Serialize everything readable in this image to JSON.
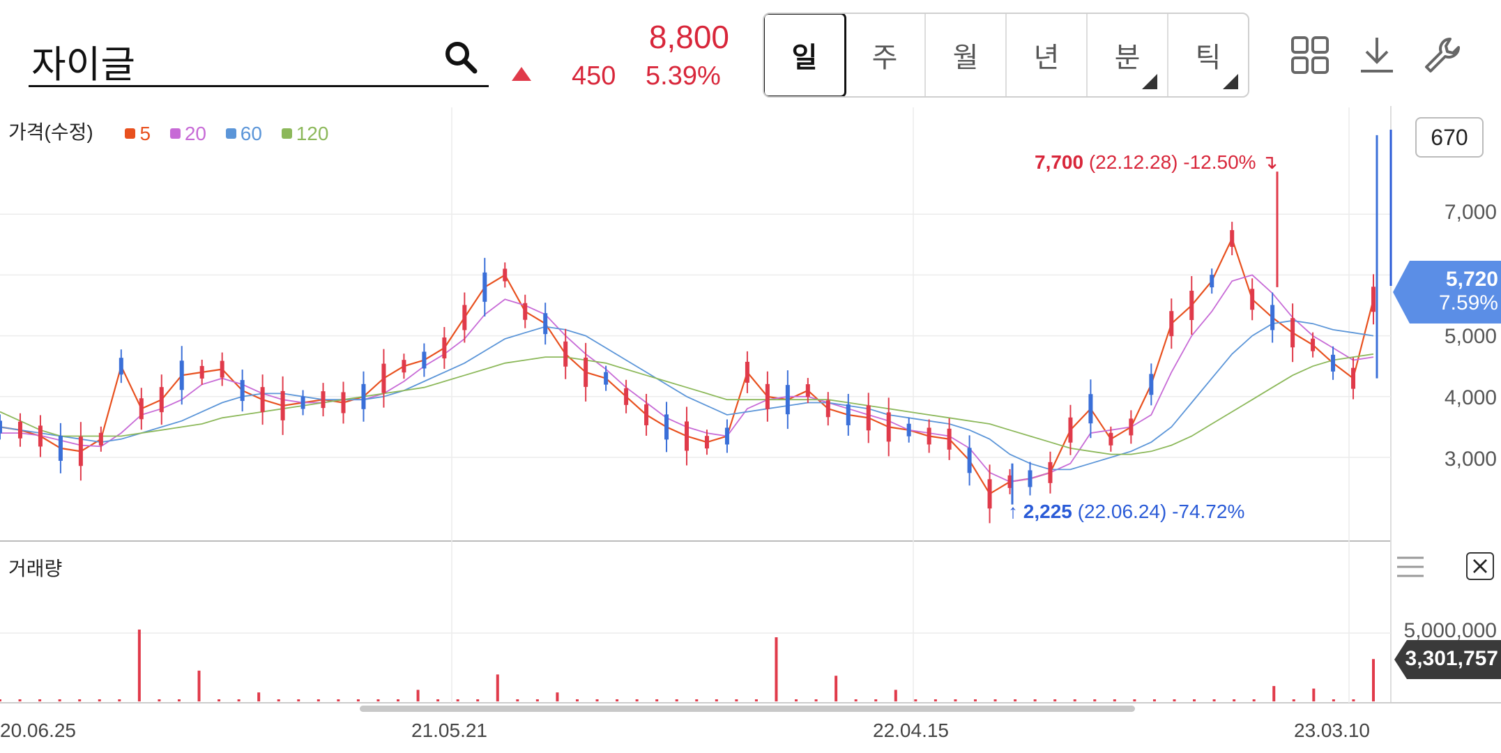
{
  "header": {
    "search_value": "자이글",
    "price": "8,800",
    "change": "450",
    "change_rate": "5.39%",
    "up_color": "#d8263a"
  },
  "periods": [
    {
      "label": "일",
      "active": true
    },
    {
      "label": "주"
    },
    {
      "label": "월"
    },
    {
      "label": "년"
    },
    {
      "label": "분",
      "has_submenu": true
    },
    {
      "label": "틱",
      "has_submenu": true
    }
  ],
  "tools": [
    "grid-layout-icon",
    "download-icon",
    "wrench-icon"
  ],
  "price_panel": {
    "title": "가격(수정)",
    "legend": [
      {
        "label": "5",
        "color": "#e8501e"
      },
      {
        "label": "20",
        "color": "#c76ad6"
      },
      {
        "label": "60",
        "color": "#5b95d8"
      },
      {
        "label": "120",
        "color": "#8cb85a"
      }
    ],
    "scale_box": "670",
    "y_ticks": [
      "7,000",
      "5,000",
      "4,000",
      "3,000"
    ],
    "current_tag": {
      "value": "5,720",
      "rate": "7.59%"
    },
    "high_annotation": {
      "value": "7,700",
      "date": "(22.12.28)",
      "rate": "-12.50%"
    },
    "low_annotation": {
      "value": "2,225",
      "date": "(22.06.24)",
      "rate": "-74.72%"
    }
  },
  "volume_panel": {
    "title": "거래량",
    "y_tick": "5,000,000",
    "current_tag": "3,301,757"
  },
  "x_labels": [
    "20.06.25",
    "21.05.21",
    "22.04.15",
    "23.03.10"
  ],
  "chart_data": {
    "type": "line",
    "y_axis_ticks": [
      3000,
      4000,
      5000,
      7000
    ],
    "high": {
      "value": 7700,
      "date": "22.12.28"
    },
    "low": {
      "value": 2225,
      "date": "22.06.24"
    },
    "current": 5720,
    "series": [
      {
        "name": "5",
        "values": [
          3500,
          3450,
          3350,
          3150,
          3100,
          3300,
          4500,
          3800,
          3950,
          4350,
          4400,
          4450,
          4100,
          3950,
          3850,
          3900,
          3950,
          3900,
          4000,
          4300,
          4500,
          4600,
          4800,
          5300,
          5800,
          6000,
          5400,
          5200,
          4700,
          4400,
          4300,
          4000,
          3700,
          3500,
          3350,
          3250,
          3350,
          4400,
          4000,
          3950,
          4100,
          3800,
          3700,
          3650,
          3500,
          3450,
          3350,
          3300,
          2950,
          2400,
          2600,
          2650,
          2750,
          3450,
          3800,
          3300,
          3500,
          4200,
          5200,
          5500,
          5900,
          6600,
          5600,
          5300,
          5050,
          4850,
          4550,
          4300,
          5600
        ]
      },
      {
        "name": "20",
        "values": [
          3400,
          3400,
          3360,
          3280,
          3200,
          3180,
          3400,
          3700,
          3800,
          3950,
          4200,
          4300,
          4200,
          4050,
          3950,
          3900,
          3900,
          3950,
          3950,
          4050,
          4250,
          4500,
          4700,
          4950,
          5350,
          5600,
          5500,
          5350,
          5000,
          4700,
          4450,
          4150,
          3900,
          3650,
          3500,
          3400,
          3350,
          3800,
          3950,
          4000,
          4000,
          3900,
          3800,
          3700,
          3600,
          3450,
          3400,
          3350,
          3150,
          2750,
          2600,
          2650,
          2750,
          2900,
          3400,
          3450,
          3500,
          3700,
          4400,
          5000,
          5400,
          5900,
          6000,
          5700,
          5300,
          5000,
          4800,
          4600,
          4650
        ]
      },
      {
        "name": "60",
        "values": [
          3500,
          3450,
          3400,
          3350,
          3300,
          3250,
          3300,
          3400,
          3500,
          3600,
          3750,
          3900,
          4000,
          4050,
          4050,
          4000,
          3950,
          3950,
          3950,
          4000,
          4100,
          4250,
          4400,
          4550,
          4750,
          4950,
          5050,
          5150,
          5100,
          5000,
          4800,
          4600,
          4400,
          4200,
          4000,
          3850,
          3700,
          3750,
          3800,
          3850,
          3900,
          3900,
          3850,
          3800,
          3700,
          3650,
          3600,
          3550,
          3450,
          3300,
          3050,
          2900,
          2800,
          2800,
          2900,
          3000,
          3100,
          3250,
          3500,
          3900,
          4300,
          4700,
          5000,
          5200,
          5250,
          5200,
          5100,
          5050,
          5000
        ]
      },
      {
        "name": "120",
        "values": [
          3750,
          3600,
          3450,
          3350,
          3350,
          3350,
          3350,
          3400,
          3450,
          3500,
          3550,
          3650,
          3700,
          3750,
          3800,
          3850,
          3900,
          3950,
          4000,
          4050,
          4100,
          4150,
          4250,
          4350,
          4450,
          4550,
          4600,
          4650,
          4650,
          4600,
          4550,
          4450,
          4350,
          4250,
          4150,
          4050,
          3950,
          3950,
          3950,
          3950,
          3950,
          3950,
          3900,
          3850,
          3800,
          3750,
          3700,
          3650,
          3600,
          3550,
          3450,
          3350,
          3250,
          3150,
          3100,
          3050,
          3050,
          3100,
          3200,
          3350,
          3550,
          3750,
          3950,
          4150,
          4350,
          4500,
          4600,
          4650,
          4700
        ]
      }
    ],
    "volume_spikes": [
      0,
      0,
      0,
      0,
      0,
      0,
      0,
      5600000,
      0,
      0,
      2400000,
      0,
      0,
      700000,
      0,
      0,
      0,
      0,
      0,
      0,
      0,
      900000,
      0,
      0,
      0,
      2100000,
      0,
      0,
      700000,
      0,
      0,
      0,
      0,
      0,
      0,
      0,
      0,
      0,
      0,
      5000000,
      0,
      0,
      2000000,
      0,
      0,
      900000,
      0,
      0,
      0,
      0,
      0,
      0,
      0,
      0,
      0,
      0,
      0,
      0,
      0,
      0,
      0,
      0,
      0,
      0,
      1200000,
      0,
      1000000,
      0,
      0,
      3301757
    ]
  }
}
